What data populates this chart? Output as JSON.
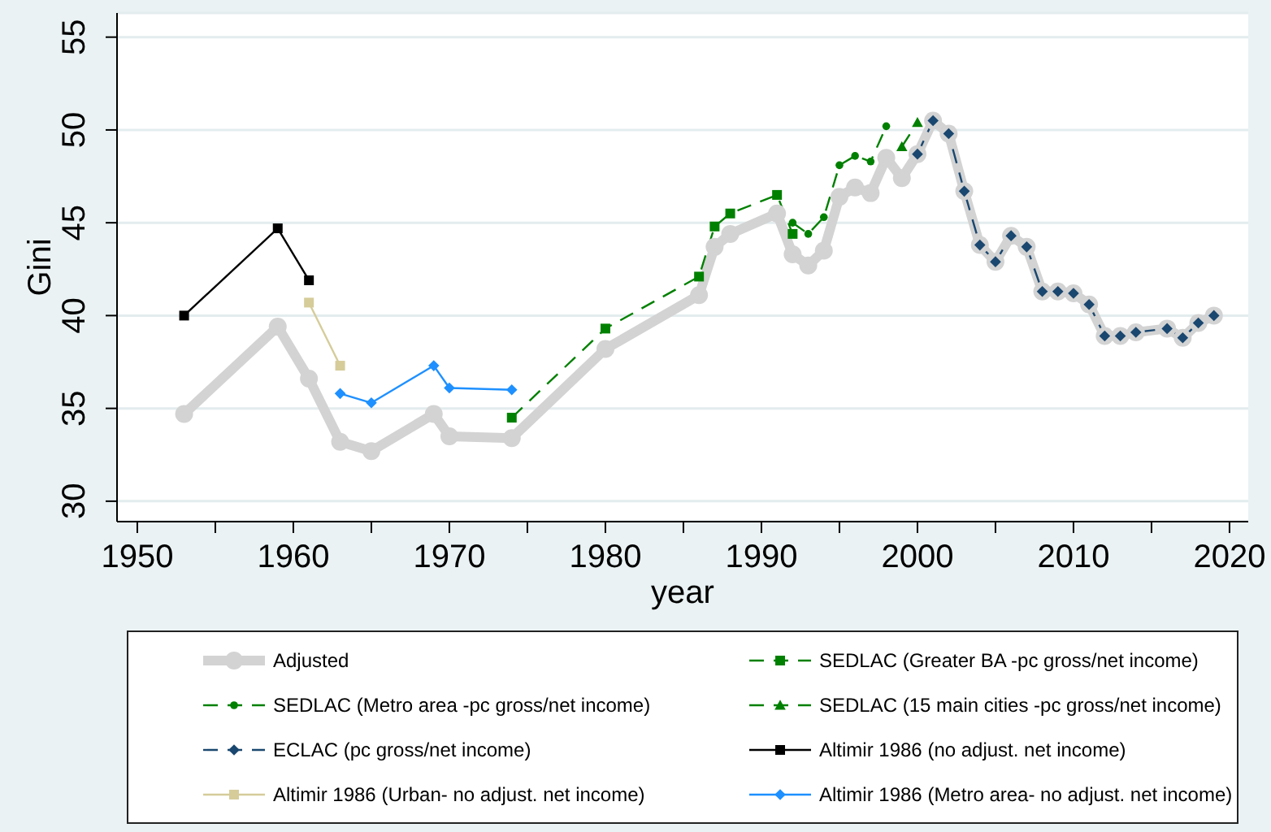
{
  "chart_data": {
    "type": "line",
    "xlabel": "year",
    "ylabel": "Gini",
    "xlim": [
      1948.7,
      2021.2
    ],
    "xticks": [
      1950,
      {
        "value": 1955,
        "label": null
      },
      1960,
      {
        "value": 1965,
        "label": null
      },
      1970,
      {
        "value": 1975,
        "label": null
      },
      1980,
      {
        "value": 1985,
        "label": null
      },
      1990,
      {
        "value": 1995,
        "label": null
      },
      2000,
      {
        "value": 2005,
        "label": null
      },
      2010,
      {
        "value": 2015,
        "label": null
      },
      2020
    ],
    "ylim": [
      28.9,
      56.3
    ],
    "yticks": [
      30,
      35,
      40,
      45,
      50,
      55
    ],
    "grid": "y",
    "legend": "bottom",
    "series": [
      {
        "name": "Adjusted",
        "color": "#d3d3d3",
        "marker": "circle",
        "line_style": "solid",
        "x": [
          1953,
          1959,
          1961,
          1963,
          1965,
          1969,
          1970,
          1974,
          1980,
          1986,
          1987,
          1988,
          1991,
          1992,
          1993,
          1994,
          1995,
          1996,
          1997,
          1998,
          1999,
          2000,
          2001,
          2002,
          2003,
          2004,
          2005,
          2006,
          2007,
          2008,
          2009,
          2010,
          2011,
          2012,
          2013,
          2014,
          2016,
          2017,
          2018,
          2019
        ],
        "values": [
          34.7,
          39.4,
          36.6,
          33.2,
          32.7,
          34.7,
          33.5,
          33.4,
          38.2,
          41.1,
          43.7,
          44.4,
          45.5,
          43.3,
          42.7,
          43.5,
          46.4,
          46.9,
          46.6,
          48.5,
          47.4,
          48.7,
          50.5,
          49.8,
          46.7,
          43.8,
          42.9,
          44.3,
          43.7,
          41.3,
          41.3,
          41.2,
          40.6,
          38.9,
          38.9,
          39.1,
          39.3,
          38.8,
          39.6,
          40.0
        ]
      },
      {
        "name": "SEDLAC (Greater BA -pc gross/net income)",
        "color": "#008000",
        "marker": "square",
        "line_style": "dashed",
        "x": [
          1974,
          1980,
          1986,
          1987,
          1988,
          1991,
          1992
        ],
        "values": [
          34.5,
          39.3,
          42.1,
          44.8,
          45.5,
          46.5,
          44.4
        ]
      },
      {
        "name": "SEDLAC (Metro area -pc gross/net income)",
        "color": "#008000",
        "marker": "circle",
        "line_style": "dashed",
        "x": [
          1992,
          1993,
          1994,
          1995,
          1996,
          1997,
          1998
        ],
        "values": [
          45.0,
          44.4,
          45.3,
          48.1,
          48.6,
          48.3,
          50.2
        ]
      },
      {
        "name": "SEDLAC (15 main cities -pc gross/net income)",
        "color": "#008000",
        "marker": "triangle",
        "line_style": "dashed",
        "x": [
          1999,
          2000
        ],
        "values": [
          49.1,
          50.4
        ]
      },
      {
        "name": "ECLAC (pc gross/net income)",
        "color": "#1a476f",
        "marker": "diamond",
        "line_style": "dashed",
        "x": [
          2000,
          2001,
          2002,
          2003,
          2004,
          2005,
          2006,
          2007,
          2008,
          2009,
          2010,
          2011,
          2012,
          2013,
          2014,
          2016,
          2017,
          2018,
          2019
        ],
        "values": [
          48.7,
          50.5,
          49.8,
          46.7,
          43.8,
          42.9,
          44.3,
          43.7,
          41.3,
          41.3,
          41.2,
          40.6,
          38.9,
          38.9,
          39.1,
          39.3,
          38.8,
          39.6,
          40.0
        ]
      },
      {
        "name": "Altimir 1986 (no adjust. net income)",
        "color": "#000000",
        "marker": "square",
        "line_style": "solid",
        "x": [
          1953,
          1959,
          1961
        ],
        "values": [
          40.0,
          44.7,
          41.9
        ]
      },
      {
        "name": "Altimir 1986 (Urban- no adjust. net income)",
        "color": "#d5cc9a",
        "marker": "square",
        "line_style": "solid",
        "x": [
          1961,
          1963
        ],
        "values": [
          40.7,
          37.3
        ]
      },
      {
        "name": "Altimir 1986 (Metro area- no adjust. net income)",
        "color": "#1e90ff",
        "marker": "diamond",
        "line_style": "solid",
        "x": [
          1963,
          1965,
          1969,
          1970,
          1974
        ],
        "values": [
          35.8,
          35.3,
          37.3,
          36.1,
          36.0
        ]
      }
    ]
  }
}
